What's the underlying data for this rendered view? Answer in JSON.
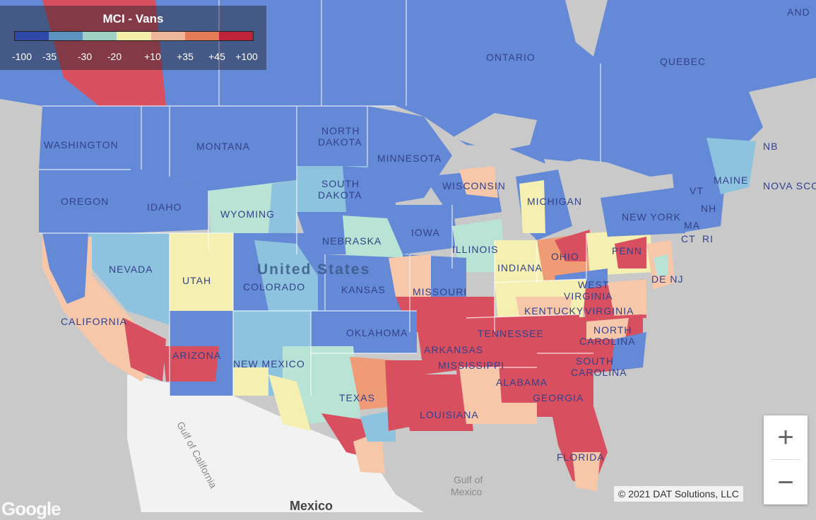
{
  "legend": {
    "title": "MCI - Vans",
    "ticks": [
      "-100",
      "-35",
      "-30",
      "-20",
      "+10",
      "+35",
      "+45",
      "+100"
    ],
    "colors": [
      "#2e49a8",
      "#5b93be",
      "#9fd2c3",
      "#f3efa8",
      "#eeb79b",
      "#e37c57",
      "#c0223c"
    ]
  },
  "palette": {
    "deep_blue": "#6489d6",
    "light_blue": "#8ec3df",
    "mint": "#b8e3d5",
    "yellow": "#f5f0b1",
    "peach": "#f7c7aa",
    "orange": "#ef9b75",
    "red": "#d8505f",
    "land_base": "#f2f2f2",
    "water": "#c9c9c9"
  },
  "map_labels": {
    "ontario": "ONTARIO",
    "quebec": "QUEBEC",
    "and": "AND",
    "north_dakota": [
      "NORTH",
      "DAKOTA"
    ],
    "south_dakota": [
      "SOUTH",
      "DAKOTA"
    ],
    "washington": "WASHINGTON",
    "montana": "MONTANA",
    "minnesota": "MINNESOTA",
    "oregon": "OREGON",
    "idaho": "IDAHO",
    "wyoming": "WYOMING",
    "wisconsin": "WISCONSIN",
    "michigan": "MICHIGAN",
    "maine": "MAINE",
    "nb": "NB",
    "nova_scotia": "NOVA SCO",
    "vt": "VT",
    "nh": "NH",
    "new_york": "NEW YORK",
    "ma": "MA",
    "ct": "CT",
    "ri": "RI",
    "iowa": "IOWA",
    "nebraska": "NEBRASKA",
    "illinois": "ILLINOIS",
    "indiana": "INDIANA",
    "ohio": "OHIO",
    "penn": "PENN",
    "nevada": "NEVADA",
    "utah": "UTAH",
    "colorado": "COLORADO",
    "kansas": "KANSAS",
    "missouri": "MISSOURI",
    "west_virginia": [
      "WEST",
      "VIRGINIA"
    ],
    "de_nj": "DE NJ",
    "kentucky": "KENTUCKY",
    "virginia": "VIRGINIA",
    "california": "CALIFORNIA",
    "tennessee": "TENNESSEE",
    "north_carolina": [
      "NORTH",
      "CAROLINA"
    ],
    "oklahoma": "OKLAHOMA",
    "arizona": "ARIZONA",
    "new_mexico": "NEW MEXICO",
    "arkansas": "ARKANSAS",
    "south_carolina": [
      "SOUTH",
      "CAROLINA"
    ],
    "mississippi": "MISSISSIPPI",
    "alabama": "ALABAMA",
    "georgia": "GEORGIA",
    "texas": "TEXAS",
    "louisiana": "LOUISIANA",
    "florida": "FLORIDA",
    "united_states": "United States",
    "gulf_of_mexico": [
      "Gulf of",
      "Mexico"
    ],
    "gulf_of_california": "Gulf of California",
    "mexico": "Mexico"
  },
  "controls": {
    "zoom_in": "+",
    "zoom_out": "−"
  },
  "attribution": "© 2021 DAT Solutions, LLC",
  "logo": "Google"
}
